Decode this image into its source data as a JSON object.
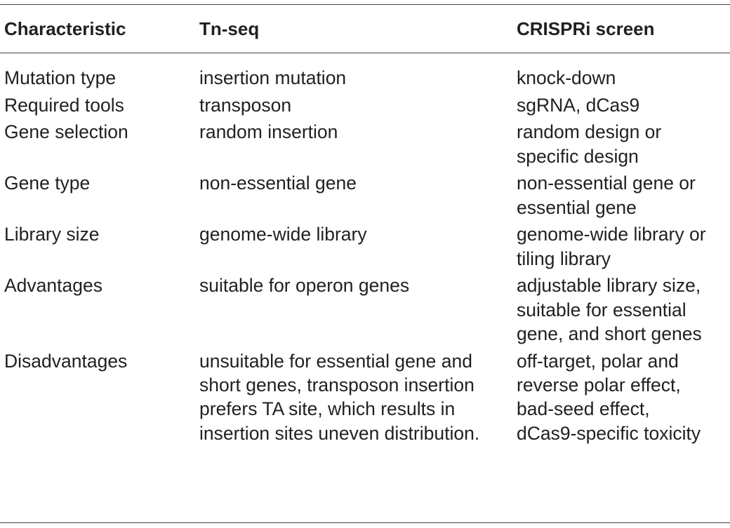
{
  "table": {
    "headers": [
      "Characteristic",
      "Tn-seq",
      "CRISPRi screen"
    ],
    "rows": [
      {
        "characteristic": [
          "Mutation type"
        ],
        "tnseq": [
          "insertion mutation"
        ],
        "crispri": [
          "knock-down"
        ]
      },
      {
        "characteristic": [
          "Required tools"
        ],
        "tnseq": [
          "transposon"
        ],
        "crispri": [
          "sgRNA, dCas9"
        ]
      },
      {
        "characteristic": [
          "Gene selection"
        ],
        "tnseq": [
          "random insertion"
        ],
        "crispri": [
          "random design or",
          "specific design"
        ]
      },
      {
        "characteristic": [
          "Gene type"
        ],
        "tnseq": [
          "non-essential gene"
        ],
        "crispri": [
          "non-essential gene or",
          "essential gene"
        ]
      },
      {
        "characteristic": [
          "Library size"
        ],
        "tnseq": [
          "genome-wide library"
        ],
        "crispri": [
          "genome-wide library or",
          "tiling library"
        ]
      },
      {
        "characteristic": [
          "Advantages"
        ],
        "tnseq": [
          "suitable for operon genes"
        ],
        "crispri": [
          "adjustable library size,",
          "suitable for essential",
          "gene, and short genes"
        ]
      },
      {
        "characteristic": [
          "Disadvantages"
        ],
        "tnseq": [
          "unsuitable for essential gene and",
          "short genes, transposon insertion",
          "prefers TA site, which results in",
          "insertion sites uneven distribution."
        ],
        "crispri": [
          "off-target, polar and",
          "reverse polar effect,",
          "bad-seed effect,",
          "dCas9-specific toxicity"
        ]
      }
    ]
  }
}
